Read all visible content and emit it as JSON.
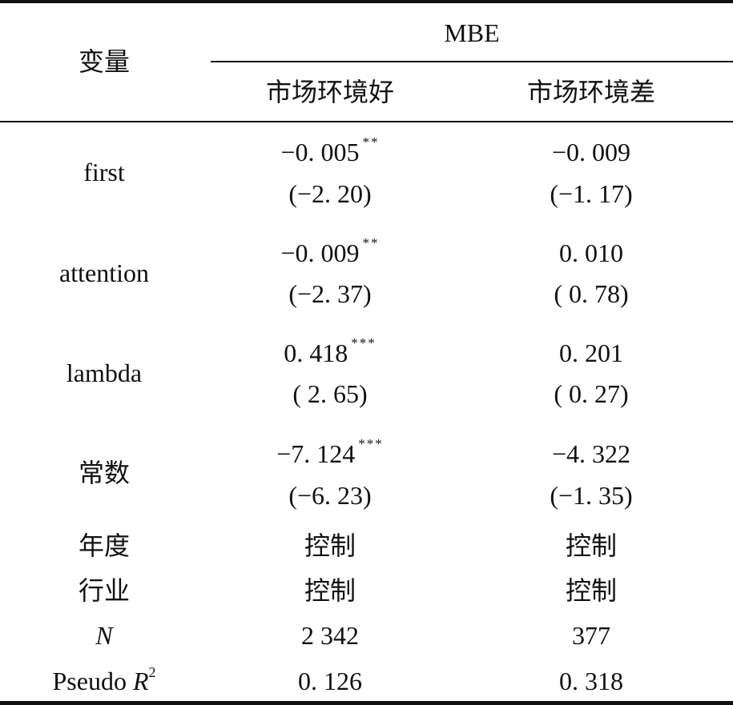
{
  "header": {
    "variable_label": "变量",
    "group_label": "MBE",
    "columns": [
      "市场环境好",
      "市场环境差"
    ]
  },
  "rows": [
    {
      "label": "first",
      "col1": {
        "coef": "−0. 005",
        "stars": "**",
        "t": "(−2. 20)"
      },
      "col2": {
        "coef": "−0. 009",
        "stars": "",
        "t": "(−1. 17)"
      }
    },
    {
      "label": "attention",
      "col1": {
        "coef": "−0. 009",
        "stars": "**",
        "t": "(−2. 37)"
      },
      "col2": {
        "coef": "0. 010",
        "stars": "",
        "t": "( 0. 78)"
      }
    },
    {
      "label": "lambda",
      "col1": {
        "coef": "0. 418",
        "stars": "***",
        "t": "( 2. 65)"
      },
      "col2": {
        "coef": "0. 201",
        "stars": "",
        "t": "( 0. 27)"
      }
    },
    {
      "label": "常数",
      "col1": {
        "coef": "−7. 124",
        "stars": "***",
        "t": "(−6. 23)"
      },
      "col2": {
        "coef": "−4. 322",
        "stars": "",
        "t": "(−1. 35)"
      }
    }
  ],
  "controls": [
    {
      "label": "年度",
      "col1": "控制",
      "col2": "控制"
    },
    {
      "label": "行业",
      "col1": "控制",
      "col2": "控制"
    }
  ],
  "stats": {
    "n": {
      "label": "N",
      "col1": "2 342",
      "col2": "377"
    },
    "r2": {
      "label": "Pseudo ",
      "label_var": "R",
      "label_sup": "2",
      "col1": "0. 126",
      "col2": "0. 318"
    }
  }
}
